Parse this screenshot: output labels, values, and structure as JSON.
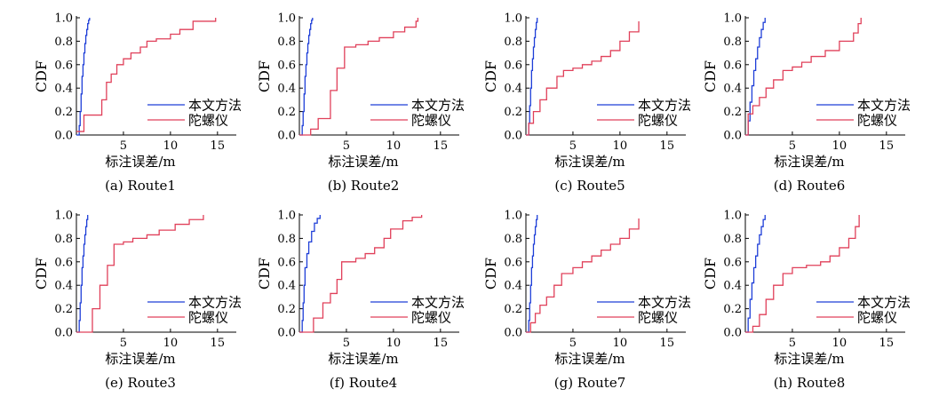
{
  "figure": {
    "colors": {
      "method": "#1f3fd8",
      "gyro": "#e0405a",
      "axis": "#000000"
    },
    "legend_method": "本文方法",
    "legend_gyro": "陀螺仪"
  },
  "chart_data": [
    {
      "type": "line",
      "caption": "(a) Route1",
      "xlabel": "标注误差/m",
      "ylabel": "CDF",
      "xlim": [
        0,
        17
      ],
      "ylim": [
        0,
        1
      ],
      "xticks": [
        5,
        10,
        15
      ],
      "yticks": [
        0.0,
        0.2,
        0.4,
        0.6,
        0.8,
        1.0
      ],
      "legend": "lower-right",
      "grid": false,
      "series": [
        {
          "name": "本文方法",
          "x": [
            0,
            0.3,
            0.4,
            0.5,
            0.6,
            0.7,
            0.8,
            0.9,
            1.0,
            1.1,
            1.2,
            1.3,
            1.4
          ],
          "y": [
            0,
            0.08,
            0.2,
            0.35,
            0.5,
            0.6,
            0.7,
            0.78,
            0.85,
            0.9,
            0.95,
            0.98,
            1.0
          ]
        },
        {
          "name": "陀螺仪",
          "x": [
            0,
            0.8,
            2.7,
            3.2,
            3.7,
            4.3,
            5.0,
            5.8,
            6.8,
            7.5,
            8.5,
            10.0,
            11.0,
            12.4,
            14.8
          ],
          "y": [
            0.03,
            0.17,
            0.3,
            0.45,
            0.52,
            0.6,
            0.65,
            0.7,
            0.75,
            0.8,
            0.82,
            0.86,
            0.9,
            0.97,
            1.0
          ]
        }
      ]
    },
    {
      "type": "line",
      "caption": "(b) Route2",
      "xlabel": "标注误差/m",
      "ylabel": "CDF",
      "xlim": [
        0,
        17
      ],
      "ylim": [
        0,
        1
      ],
      "xticks": [
        5,
        10,
        15
      ],
      "yticks": [
        0.0,
        0.2,
        0.4,
        0.6,
        0.8,
        1.0
      ],
      "legend": "lower-right",
      "grid": false,
      "series": [
        {
          "name": "本文方法",
          "x": [
            0,
            0.3,
            0.4,
            0.5,
            0.6,
            0.7,
            0.8,
            0.9,
            1.0,
            1.1,
            1.2,
            1.3,
            1.4
          ],
          "y": [
            0,
            0.08,
            0.2,
            0.35,
            0.5,
            0.6,
            0.7,
            0.78,
            0.85,
            0.9,
            0.95,
            0.98,
            1.0
          ]
        },
        {
          "name": "陀螺仪",
          "x": [
            0,
            1.2,
            2.0,
            3.3,
            4.0,
            4.8,
            6.0,
            7.3,
            8.5,
            10.0,
            11.2,
            12.4,
            12.6
          ],
          "y": [
            0,
            0.05,
            0.14,
            0.38,
            0.57,
            0.75,
            0.77,
            0.8,
            0.83,
            0.88,
            0.92,
            0.97,
            1.0
          ]
        }
      ]
    },
    {
      "type": "line",
      "caption": "(c) Route5",
      "xlabel": "标注误差/m",
      "ylabel": "CDF",
      "xlim": [
        0,
        17
      ],
      "ylim": [
        0,
        1
      ],
      "xticks": [
        5,
        10,
        15
      ],
      "yticks": [
        0.0,
        0.2,
        0.4,
        0.6,
        0.8,
        1.0
      ],
      "legend": "lower-right",
      "grid": false,
      "series": [
        {
          "name": "本文方法",
          "x": [
            0,
            0.3,
            0.4,
            0.5,
            0.6,
            0.7,
            0.8,
            0.9,
            1.0,
            1.1,
            1.2
          ],
          "y": [
            0,
            0.1,
            0.25,
            0.4,
            0.55,
            0.65,
            0.75,
            0.83,
            0.9,
            0.96,
            1.0
          ]
        },
        {
          "name": "陀螺仪",
          "x": [
            0,
            0.3,
            0.8,
            1.5,
            2.2,
            3.3,
            4.0,
            5.0,
            6.0,
            7.0,
            8.0,
            9.0,
            10.0,
            11.0,
            12.0
          ],
          "y": [
            0,
            0.1,
            0.2,
            0.3,
            0.4,
            0.5,
            0.55,
            0.57,
            0.6,
            0.63,
            0.67,
            0.72,
            0.8,
            0.88,
            0.97
          ]
        }
      ]
    },
    {
      "type": "line",
      "caption": "(d) Route6",
      "xlabel": "标注误差/m",
      "ylabel": "CDF",
      "xlim": [
        0,
        17
      ],
      "ylim": [
        0,
        1
      ],
      "xticks": [
        5,
        10,
        15
      ],
      "yticks": [
        0.0,
        0.2,
        0.4,
        0.6,
        0.8,
        1.0
      ],
      "legend": "lower-right",
      "grid": false,
      "series": [
        {
          "name": "本文方法",
          "x": [
            0,
            0.3,
            0.5,
            0.7,
            0.9,
            1.1,
            1.3,
            1.5,
            1.7,
            1.9,
            2.1
          ],
          "y": [
            0,
            0.12,
            0.28,
            0.42,
            0.55,
            0.65,
            0.75,
            0.83,
            0.9,
            0.96,
            1.0
          ]
        },
        {
          "name": "陀螺仪",
          "x": [
            0,
            0.3,
            0.8,
            1.5,
            2.2,
            3.0,
            4.0,
            5.0,
            6.0,
            7.0,
            8.5,
            10.0,
            11.5,
            12.0,
            12.3
          ],
          "y": [
            0,
            0.18,
            0.25,
            0.32,
            0.4,
            0.47,
            0.55,
            0.58,
            0.62,
            0.67,
            0.72,
            0.8,
            0.87,
            0.95,
            1.0
          ]
        }
      ]
    },
    {
      "type": "line",
      "caption": "(e) Route3",
      "xlabel": "标注误差/m",
      "ylabel": "CDF",
      "xlim": [
        0,
        17
      ],
      "ylim": [
        0,
        1
      ],
      "xticks": [
        5,
        10,
        15
      ],
      "yticks": [
        0.0,
        0.2,
        0.4,
        0.6,
        0.8,
        1.0
      ],
      "legend": "lower-right",
      "grid": false,
      "series": [
        {
          "name": "本文方法",
          "x": [
            0,
            0.3,
            0.4,
            0.5,
            0.6,
            0.7,
            0.8,
            0.9,
            1.0,
            1.1,
            1.2
          ],
          "y": [
            0,
            0.1,
            0.25,
            0.4,
            0.55,
            0.65,
            0.75,
            0.83,
            0.9,
            0.96,
            1.0
          ]
        },
        {
          "name": "陀螺仪",
          "x": [
            0,
            1.7,
            2.5,
            3.3,
            4.0,
            5.0,
            6.0,
            7.5,
            8.8,
            10.5,
            12.0,
            13.5
          ],
          "y": [
            0,
            0.2,
            0.4,
            0.57,
            0.75,
            0.77,
            0.8,
            0.83,
            0.87,
            0.92,
            0.96,
            1.0
          ]
        }
      ]
    },
    {
      "type": "line",
      "caption": "(f) Route4",
      "xlabel": "标注误差/m",
      "ylabel": "CDF",
      "xlim": [
        0,
        17
      ],
      "ylim": [
        0,
        1
      ],
      "xticks": [
        5,
        10,
        15
      ],
      "yticks": [
        0.0,
        0.2,
        0.4,
        0.6,
        0.8,
        1.0
      ],
      "legend": "lower-right",
      "grid": false,
      "series": [
        {
          "name": "本文方法",
          "x": [
            0,
            0.3,
            0.4,
            0.5,
            0.6,
            0.8,
            1.0,
            1.3,
            1.6,
            1.9,
            2.2
          ],
          "y": [
            0,
            0.1,
            0.25,
            0.4,
            0.55,
            0.67,
            0.77,
            0.86,
            0.93,
            0.97,
            1.0
          ]
        },
        {
          "name": "陀螺仪",
          "x": [
            0,
            1.5,
            2.5,
            3.3,
            4.0,
            4.5,
            6.0,
            7.0,
            8.0,
            9.0,
            9.7,
            11.0,
            12.0,
            13.0
          ],
          "y": [
            0,
            0.12,
            0.25,
            0.33,
            0.45,
            0.6,
            0.63,
            0.67,
            0.72,
            0.8,
            0.88,
            0.95,
            0.98,
            1.0
          ]
        }
      ]
    },
    {
      "type": "line",
      "caption": "(g) Route7",
      "xlabel": "标注误差/m",
      "ylabel": "CDF",
      "xlim": [
        0,
        17
      ],
      "ylim": [
        0,
        1
      ],
      "xticks": [
        5,
        10,
        15
      ],
      "yticks": [
        0.0,
        0.2,
        0.4,
        0.6,
        0.8,
        1.0
      ],
      "legend": "lower-right",
      "grid": false,
      "series": [
        {
          "name": "本文方法",
          "x": [
            0,
            0.3,
            0.4,
            0.5,
            0.6,
            0.7,
            0.8,
            0.9,
            1.0,
            1.1,
            1.2
          ],
          "y": [
            0,
            0.1,
            0.25,
            0.4,
            0.55,
            0.65,
            0.75,
            0.83,
            0.9,
            0.96,
            1.0
          ]
        },
        {
          "name": "陀螺仪",
          "x": [
            0,
            0.5,
            1.0,
            1.5,
            2.2,
            3.0,
            3.8,
            5.0,
            6.0,
            7.0,
            8.0,
            9.0,
            10.0,
            11.0,
            12.0
          ],
          "y": [
            0,
            0.08,
            0.16,
            0.23,
            0.3,
            0.4,
            0.5,
            0.55,
            0.6,
            0.65,
            0.7,
            0.75,
            0.8,
            0.88,
            0.97
          ]
        }
      ]
    },
    {
      "type": "line",
      "caption": "(h) Route8",
      "xlabel": "标注误差/m",
      "ylabel": "CDF",
      "xlim": [
        0,
        17
      ],
      "ylim": [
        0,
        1
      ],
      "xticks": [
        5,
        10,
        15
      ],
      "yticks": [
        0.0,
        0.2,
        0.4,
        0.6,
        0.8,
        1.0
      ],
      "legend": "lower-right",
      "grid": false,
      "series": [
        {
          "name": "本文方法",
          "x": [
            0,
            0.3,
            0.5,
            0.7,
            0.9,
            1.1,
            1.3,
            1.5,
            1.7,
            1.9,
            2.1
          ],
          "y": [
            0,
            0.12,
            0.28,
            0.42,
            0.55,
            0.65,
            0.75,
            0.83,
            0.9,
            0.96,
            1.0
          ]
        },
        {
          "name": "陀螺仪",
          "x": [
            0,
            0.8,
            1.5,
            2.2,
            3.0,
            4.0,
            5.0,
            6.5,
            8.0,
            9.0,
            10.0,
            11.0,
            11.7,
            12.1
          ],
          "y": [
            0,
            0.05,
            0.15,
            0.28,
            0.4,
            0.5,
            0.55,
            0.57,
            0.6,
            0.65,
            0.72,
            0.8,
            0.9,
            1.0
          ]
        }
      ]
    }
  ]
}
